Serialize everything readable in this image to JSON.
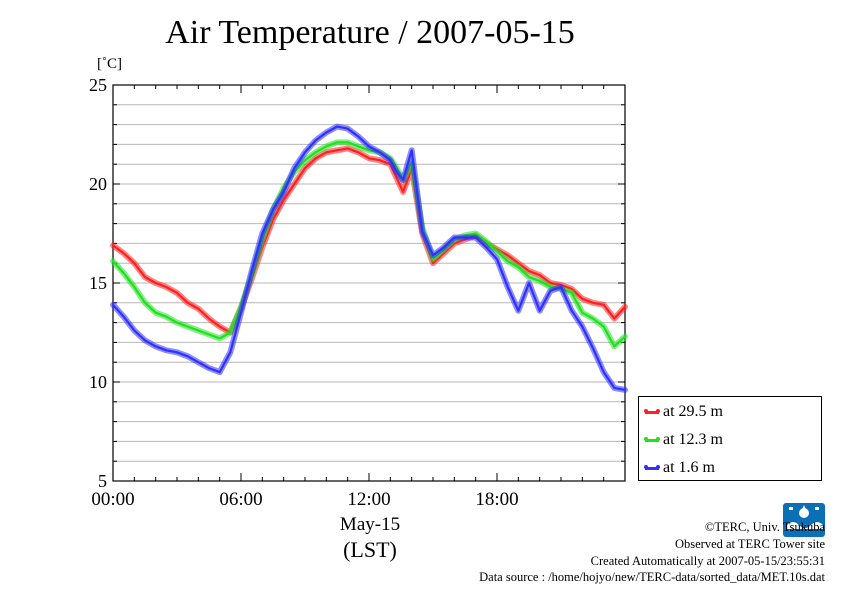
{
  "chart_data": {
    "type": "line",
    "title": "Air Temperature / 2007-05-15",
    "ylabel": "[˚C]",
    "xlabel": "May-15",
    "xlabel_sub": "(LST)",
    "ylim": [
      5,
      25
    ],
    "xlim_hours": [
      0,
      24
    ],
    "yticks": [
      "25",
      "20",
      "15",
      "10",
      "5"
    ],
    "xticks": [
      "00:00",
      "06:00",
      "12:00",
      "18:00"
    ],
    "grid": "horizontal",
    "legend_position": "lower-right-outside",
    "x_unit": "hour of day (LST)",
    "series": [
      {
        "name": "at 29.5 m",
        "color": "#ff2020",
        "points": [
          [
            0,
            16.9
          ],
          [
            0.5,
            16.5
          ],
          [
            1,
            16
          ],
          [
            1.5,
            15.3
          ],
          [
            2,
            15
          ],
          [
            2.5,
            14.8
          ],
          [
            3,
            14.5
          ],
          [
            3.5,
            14
          ],
          [
            4,
            13.7
          ],
          [
            4.5,
            13.2
          ],
          [
            5,
            12.8
          ],
          [
            5.5,
            12.5
          ],
          [
            6,
            13.7
          ],
          [
            6.5,
            15.2
          ],
          [
            7,
            16.8
          ],
          [
            7.5,
            18.2
          ],
          [
            8,
            19.2
          ],
          [
            8.5,
            20
          ],
          [
            9,
            20.8
          ],
          [
            9.5,
            21.3
          ],
          [
            10,
            21.6
          ],
          [
            10.5,
            21.7
          ],
          [
            11,
            21.8
          ],
          [
            11.5,
            21.6
          ],
          [
            12,
            21.3
          ],
          [
            12.5,
            21.2
          ],
          [
            13,
            21
          ],
          [
            13.3,
            20.3
          ],
          [
            13.6,
            19.6
          ],
          [
            14,
            20.8
          ],
          [
            14.5,
            17.5
          ],
          [
            15,
            16
          ],
          [
            15.5,
            16.5
          ],
          [
            16,
            17
          ],
          [
            16.5,
            17.2
          ],
          [
            17,
            17.4
          ],
          [
            17.5,
            17
          ],
          [
            18,
            16.7
          ],
          [
            18.5,
            16.4
          ],
          [
            19,
            16
          ],
          [
            19.5,
            15.6
          ],
          [
            20,
            15.4
          ],
          [
            20.5,
            15
          ],
          [
            21,
            14.9
          ],
          [
            21.5,
            14.7
          ],
          [
            22,
            14.2
          ],
          [
            22.5,
            14
          ],
          [
            23,
            13.9
          ],
          [
            23.5,
            13.2
          ],
          [
            24,
            13.8
          ]
        ]
      },
      {
        "name": "at 12.3 m",
        "color": "#20e020",
        "points": [
          [
            0,
            16.1
          ],
          [
            0.5,
            15.5
          ],
          [
            1,
            14.8
          ],
          [
            1.5,
            14
          ],
          [
            2,
            13.5
          ],
          [
            2.5,
            13.3
          ],
          [
            3,
            13
          ],
          [
            3.5,
            12.8
          ],
          [
            4,
            12.6
          ],
          [
            4.5,
            12.4
          ],
          [
            5,
            12.2
          ],
          [
            5.5,
            12.5
          ],
          [
            6,
            13.8
          ],
          [
            6.5,
            15.4
          ],
          [
            7,
            17.2
          ],
          [
            7.5,
            18.7
          ],
          [
            8,
            19.8
          ],
          [
            8.5,
            20.6
          ],
          [
            9,
            21.2
          ],
          [
            9.5,
            21.6
          ],
          [
            10,
            21.9
          ],
          [
            10.5,
            22.1
          ],
          [
            11,
            22.1
          ],
          [
            11.5,
            21.9
          ],
          [
            12,
            21.7
          ],
          [
            12.5,
            21.6
          ],
          [
            13,
            21.3
          ],
          [
            13.3,
            20.8
          ],
          [
            13.6,
            20.2
          ],
          [
            14,
            21.1
          ],
          [
            14.5,
            17.8
          ],
          [
            15,
            16.2
          ],
          [
            15.5,
            16.7
          ],
          [
            16,
            17.2
          ],
          [
            16.5,
            17.4
          ],
          [
            17,
            17.5
          ],
          [
            17.5,
            17.1
          ],
          [
            18,
            16.6
          ],
          [
            18.5,
            16.1
          ],
          [
            19,
            15.8
          ],
          [
            19.5,
            15.3
          ],
          [
            20,
            15.1
          ],
          [
            20.5,
            14.8
          ],
          [
            21,
            14.7
          ],
          [
            21.5,
            14.5
          ],
          [
            22,
            13.5
          ],
          [
            22.5,
            13.2
          ],
          [
            23,
            12.8
          ],
          [
            23.5,
            11.8
          ],
          [
            24,
            12.3
          ]
        ]
      },
      {
        "name": "at 1.6 m",
        "color": "#3030ff",
        "points": [
          [
            0,
            13.9
          ],
          [
            0.5,
            13.3
          ],
          [
            1,
            12.6
          ],
          [
            1.5,
            12.1
          ],
          [
            2,
            11.8
          ],
          [
            2.5,
            11.6
          ],
          [
            3,
            11.5
          ],
          [
            3.5,
            11.3
          ],
          [
            4,
            11
          ],
          [
            4.5,
            10.7
          ],
          [
            5,
            10.5
          ],
          [
            5.5,
            11.5
          ],
          [
            6,
            13.5
          ],
          [
            6.5,
            15.6
          ],
          [
            7,
            17.5
          ],
          [
            7.5,
            18.7
          ],
          [
            8,
            19.6
          ],
          [
            8.5,
            20.8
          ],
          [
            9,
            21.6
          ],
          [
            9.5,
            22.2
          ],
          [
            10,
            22.6
          ],
          [
            10.5,
            22.9
          ],
          [
            11,
            22.8
          ],
          [
            11.5,
            22.4
          ],
          [
            12,
            21.9
          ],
          [
            12.5,
            21.6
          ],
          [
            13,
            21.2
          ],
          [
            13.3,
            20.6
          ],
          [
            13.6,
            20.2
          ],
          [
            14,
            21.7
          ],
          [
            14.5,
            17.6
          ],
          [
            15,
            16.4
          ],
          [
            15.5,
            16.8
          ],
          [
            16,
            17.3
          ],
          [
            16.5,
            17.3
          ],
          [
            17,
            17.3
          ],
          [
            17.5,
            16.8
          ],
          [
            18,
            16.2
          ],
          [
            18.5,
            14.8
          ],
          [
            19,
            13.6
          ],
          [
            19.5,
            15
          ],
          [
            20,
            13.6
          ],
          [
            20.5,
            14.6
          ],
          [
            21,
            14.8
          ],
          [
            21.5,
            13.6
          ],
          [
            22,
            12.8
          ],
          [
            22.5,
            11.7
          ],
          [
            23,
            10.5
          ],
          [
            23.5,
            9.7
          ],
          [
            24,
            9.6
          ]
        ]
      }
    ]
  },
  "credits": {
    "org": "©TERC, Univ. Tsukuba",
    "site": "Observed at TERC Tower site",
    "created": "Created Automatically at 2007-05-15/23:55:31",
    "source": "Data source : /home/hojyo/new/TERC-data/sorted_data/MET.10s.dat"
  },
  "logo": {
    "text": "TERC",
    "color": "#0b6fb8"
  }
}
